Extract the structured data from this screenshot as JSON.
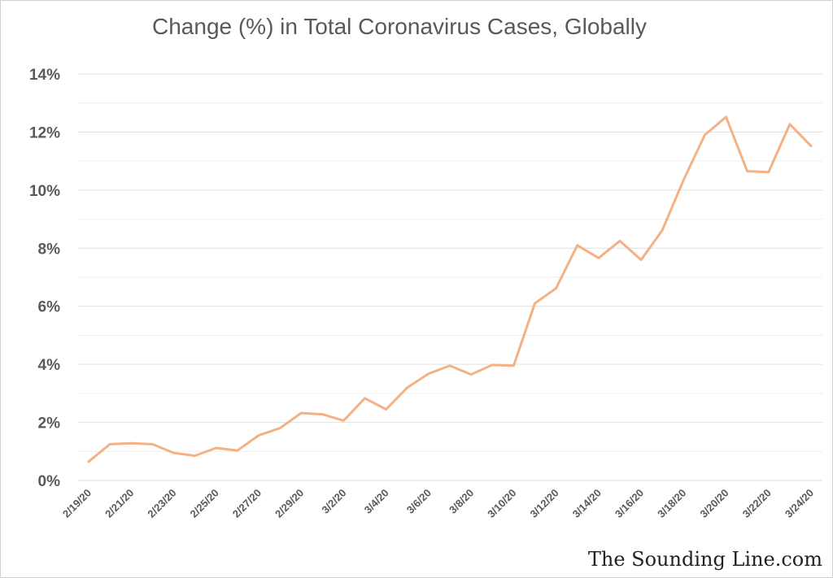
{
  "chart_data": {
    "type": "line",
    "title": "Change (%) in Total Coronavirus Cases, Globally",
    "xlabel": "",
    "ylabel": "",
    "ylim": [
      0,
      14
    ],
    "y_ticks": [
      "0%",
      "2%",
      "4%",
      "6%",
      "8%",
      "10%",
      "12%",
      "14%"
    ],
    "x_tick_labels": [
      "2/19/20",
      "2/21/20",
      "2/23/20",
      "2/25/20",
      "2/27/20",
      "2/29/20",
      "3/2/20",
      "3/4/20",
      "3/6/20",
      "3/8/20",
      "3/10/20",
      "3/12/20",
      "3/14/20",
      "3/16/20",
      "3/18/20",
      "3/20/20",
      "3/22/20",
      "3/24/20"
    ],
    "x": [
      "2/19/20",
      "2/20/20",
      "2/21/20",
      "2/22/20",
      "2/23/20",
      "2/24/20",
      "2/25/20",
      "2/26/20",
      "2/27/20",
      "2/28/20",
      "2/29/20",
      "3/1/20",
      "3/2/20",
      "3/3/20",
      "3/4/20",
      "3/5/20",
      "3/6/20",
      "3/7/20",
      "3/8/20",
      "3/9/20",
      "3/10/20",
      "3/11/20",
      "3/12/20",
      "3/13/20",
      "3/14/20",
      "3/15/20",
      "3/16/20",
      "3/17/20",
      "3/18/20",
      "3/19/20",
      "3/20/20",
      "3/21/20",
      "3/22/20",
      "3/23/20",
      "3/24/20"
    ],
    "series": [
      {
        "values": [
          0.65,
          1.25,
          1.28,
          1.25,
          0.95,
          0.85,
          1.12,
          1.03,
          1.55,
          1.8,
          2.32,
          2.28,
          2.06,
          2.83,
          2.45,
          3.2,
          3.68,
          3.95,
          3.65,
          3.98,
          3.95,
          6.1,
          6.62,
          8.1,
          7.66,
          8.25,
          7.6,
          8.62,
          10.35,
          11.9,
          12.52,
          10.65,
          10.62,
          12.27,
          11.52
        ],
        "color": "#f4b183"
      }
    ],
    "grid": true,
    "legend": "none"
  },
  "watermark": "The Sounding Line.com"
}
